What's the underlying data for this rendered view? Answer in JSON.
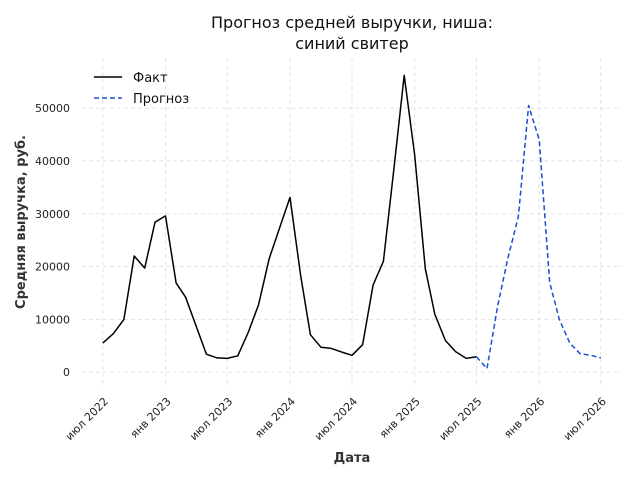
{
  "chart_data": {
    "type": "line",
    "title": "Прогноз средней выручки, ниша:",
    "subtitle": "синий свитер",
    "xlabel": "Дата",
    "ylabel": "Средняя выручка, руб.",
    "ylim": [
      -3000,
      59500
    ],
    "xlim": [
      "2022-05-01",
      "2026-09-01"
    ],
    "grid": true,
    "legend_position": "top-left",
    "x_ticks": [
      {
        "label": "июл 2022",
        "date": "2022-07-01"
      },
      {
        "label": "янв 2023",
        "date": "2023-01-01"
      },
      {
        "label": "июл 2023",
        "date": "2023-07-01"
      },
      {
        "label": "янв 2024",
        "date": "2024-01-01"
      },
      {
        "label": "июл 2024",
        "date": "2024-07-01"
      },
      {
        "label": "янв 2025",
        "date": "2025-01-01"
      },
      {
        "label": "июл 2025",
        "date": "2025-07-01"
      },
      {
        "label": "янв 2026",
        "date": "2026-01-01"
      },
      {
        "label": "июл 2026",
        "date": "2026-07-01"
      }
    ],
    "y_ticks": [
      0,
      10000,
      20000,
      30000,
      40000,
      50000
    ],
    "series": [
      {
        "name": "Факт",
        "color": "#000000",
        "style": "solid",
        "points": [
          {
            "x": "2022-07-01",
            "y": 5500
          },
          {
            "x": "2022-08-01",
            "y": 7300
          },
          {
            "x": "2022-09-01",
            "y": 10000
          },
          {
            "x": "2022-10-01",
            "y": 22000
          },
          {
            "x": "2022-11-01",
            "y": 19700
          },
          {
            "x": "2022-12-01",
            "y": 28400
          },
          {
            "x": "2023-01-01",
            "y": 29600
          },
          {
            "x": "2023-02-01",
            "y": 16900
          },
          {
            "x": "2023-03-01",
            "y": 14200
          },
          {
            "x": "2023-04-01",
            "y": 8700
          },
          {
            "x": "2023-05-01",
            "y": 3400
          },
          {
            "x": "2023-06-01",
            "y": 2700
          },
          {
            "x": "2023-07-01",
            "y": 2600
          },
          {
            "x": "2023-08-01",
            "y": 3100
          },
          {
            "x": "2023-09-01",
            "y": 7600
          },
          {
            "x": "2023-10-01",
            "y": 12800
          },
          {
            "x": "2023-11-01",
            "y": 21500
          },
          {
            "x": "2023-12-01",
            "y": 27200
          },
          {
            "x": "2024-01-01",
            "y": 33100
          },
          {
            "x": "2024-02-01",
            "y": 18500
          },
          {
            "x": "2024-03-01",
            "y": 7100
          },
          {
            "x": "2024-04-01",
            "y": 4700
          },
          {
            "x": "2024-05-01",
            "y": 4500
          },
          {
            "x": "2024-06-01",
            "y": 3800
          },
          {
            "x": "2024-07-01",
            "y": 3200
          },
          {
            "x": "2024-08-01",
            "y": 5200
          },
          {
            "x": "2024-09-01",
            "y": 16500
          },
          {
            "x": "2024-10-01",
            "y": 21000
          },
          {
            "x": "2024-11-01",
            "y": 38500
          },
          {
            "x": "2024-12-01",
            "y": 56200
          },
          {
            "x": "2025-01-01",
            "y": 41100
          },
          {
            "x": "2025-02-01",
            "y": 19600
          },
          {
            "x": "2025-03-01",
            "y": 11000
          },
          {
            "x": "2025-04-01",
            "y": 6000
          },
          {
            "x": "2025-05-01",
            "y": 3900
          },
          {
            "x": "2025-06-01",
            "y": 2600
          },
          {
            "x": "2025-07-01",
            "y": 2900
          }
        ]
      },
      {
        "name": "Прогноз",
        "color": "#1a4fcf",
        "style": "dashed",
        "points": [
          {
            "x": "2025-07-01",
            "y": 2900
          },
          {
            "x": "2025-08-01",
            "y": 700
          },
          {
            "x": "2025-09-01",
            "y": 12500
          },
          {
            "x": "2025-10-01",
            "y": 21500
          },
          {
            "x": "2025-11-01",
            "y": 29500
          },
          {
            "x": "2025-12-01",
            "y": 50500
          },
          {
            "x": "2026-01-01",
            "y": 44000
          },
          {
            "x": "2026-02-01",
            "y": 17000
          },
          {
            "x": "2026-03-01",
            "y": 10000
          },
          {
            "x": "2026-04-01",
            "y": 5500
          },
          {
            "x": "2026-05-01",
            "y": 3500
          },
          {
            "x": "2026-06-01",
            "y": 3200
          },
          {
            "x": "2026-07-01",
            "y": 2700
          }
        ]
      }
    ]
  }
}
